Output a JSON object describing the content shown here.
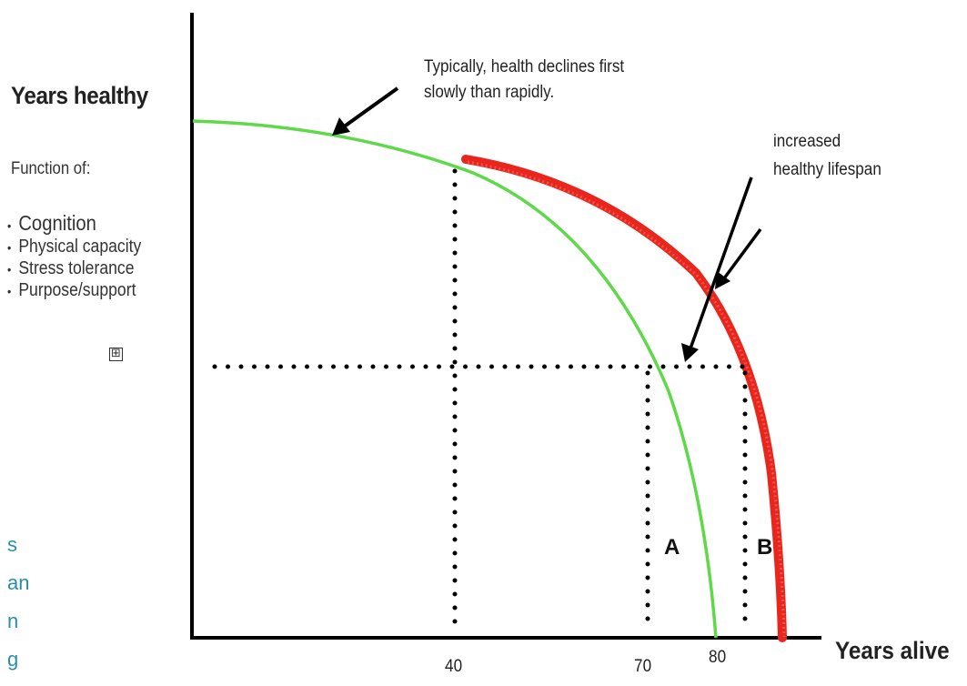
{
  "chart": {
    "y_axis_label": "Years healthy",
    "x_axis_label": "Years alive",
    "function_of_label": "Function of:",
    "factors": [
      "Cognition",
      "Physical capacity",
      "Stress tolerance",
      "Purpose/support"
    ],
    "expand_symbol": "⊞",
    "annotation_top_lines": [
      "Typically, health declines first",
      "slowly than rapidly."
    ],
    "annotation_right_lines": [
      "increased",
      "healthy lifespan"
    ],
    "x_ticks": [
      "40",
      "70",
      "80"
    ],
    "point_a": "A",
    "point_b": "B",
    "cut_off_text": [
      "s",
      "an",
      "n",
      "g"
    ],
    "colors": {
      "green_curve": "#5fd84a",
      "red_curve": "#e8261e",
      "axis": "#000000"
    }
  }
}
